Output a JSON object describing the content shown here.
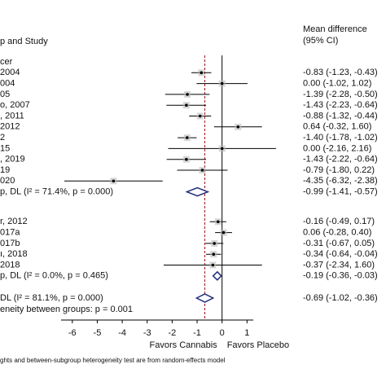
{
  "chart_data": {
    "type": "forest",
    "header_left": "p and Study",
    "header_right": [
      "Mean difference",
      "(95% CI)"
    ],
    "groups": [
      {
        "label": "cer",
        "rows": [
          {
            "label": " 2004",
            "value": -0.83,
            "lo": -1.23,
            "hi": -0.43,
            "ci_label": "-0.83 (-1.23, -0.43)"
          },
          {
            "label": "004",
            "value": 0.0,
            "lo": -1.02,
            "hi": 1.02,
            "ci_label": "0.00 (-1.02, 1.02)"
          },
          {
            "label": "05",
            "value": -1.39,
            "lo": -2.28,
            "hi": -0.5,
            "ci_label": "-1.39 (-2.28, -0.50)"
          },
          {
            "label": "o, 2007",
            "value": -1.43,
            "lo": -2.23,
            "hi": -0.64,
            "ci_label": "-1.43 (-2.23, -0.64)"
          },
          {
            "label": ", 2011",
            "value": -0.88,
            "lo": -1.32,
            "hi": -0.44,
            "ci_label": "-0.88 (-1.32, -0.44)"
          },
          {
            "label": " 2012",
            "value": 0.64,
            "lo": -0.32,
            "hi": 1.6,
            "ci_label": "0.64 (-0.32, 1.60)"
          },
          {
            "label": "2",
            "value": -1.4,
            "lo": -1.78,
            "hi": -1.02,
            "ci_label": "-1.40 (-1.78, -1.02)"
          },
          {
            "label": "15",
            "value": 0.0,
            "lo": -2.16,
            "hi": 2.16,
            "ci_label": "0.00 (-2.16, 2.16)"
          },
          {
            "label": ", 2019",
            "value": -1.43,
            "lo": -2.22,
            "hi": -0.64,
            "ci_label": "-1.43 (-2.22, -0.64)"
          },
          {
            "label": "19",
            "value": -0.79,
            "lo": -1.8,
            "hi": 0.22,
            "ci_label": "-0.79 (-1.80, 0.22)"
          },
          {
            "label": "020",
            "value": -4.35,
            "lo": -6.32,
            "hi": -2.38,
            "ci_label": "-4.35 (-6.32, -2.38)"
          }
        ],
        "subtotal": {
          "label": "p, DL (I² = 71.4%, p = 0.000)",
          "value": -0.99,
          "lo": -1.41,
          "hi": -0.57,
          "ci_label": "-0.99 (-1.41, -0.57)"
        }
      },
      {
        "rows": [
          {
            "label": "r, 2012",
            "value": -0.16,
            "lo": -0.49,
            "hi": 0.17,
            "ci_label": "-0.16 (-0.49, 0.17)"
          },
          {
            "label": "017a",
            "value": 0.06,
            "lo": -0.28,
            "hi": 0.4,
            "ci_label": "0.06 (-0.28, 0.40)"
          },
          {
            "label": "017b",
            "value": -0.31,
            "lo": -0.67,
            "hi": 0.05,
            "ci_label": "-0.31 (-0.67, 0.05)"
          },
          {
            "label": "ı, 2018",
            "value": -0.34,
            "lo": -0.64,
            "hi": -0.04,
            "ci_label": "-0.34 (-0.64, -0.04)"
          },
          {
            "label": "2018",
            "value": -0.37,
            "lo": -2.34,
            "hi": 1.6,
            "ci_label": "-0.37 (-2.34, 1.60)"
          }
        ],
        "subtotal": {
          "label": "p, DL (I² = 0.0%, p = 0.465)",
          "value": -0.19,
          "lo": -0.36,
          "hi": -0.03,
          "ci_label": "-0.19 (-0.36, -0.03)"
        }
      }
    ],
    "overall": {
      "label": "DL (I² = 81.1%, p = 0.000)",
      "value": -0.69,
      "lo": -1.02,
      "hi": -0.36,
      "ci_label": "-0.69 (-1.02, -0.36)"
    },
    "heterogeneity": "eneity between groups: p = 0.001",
    "xlim": [
      -6.45,
      1.25
    ],
    "xticks": [
      -6,
      -5,
      -4,
      -3,
      -2,
      -1,
      0,
      1
    ],
    "x_label_left": "Favors Cannabis",
    "x_label_right": "Favors Placebo",
    "footnote": "ghts and between-subgroup heterogeneity test are from random-effects model",
    "color": "#1f2d7a",
    "ref_color": "#c00000"
  }
}
